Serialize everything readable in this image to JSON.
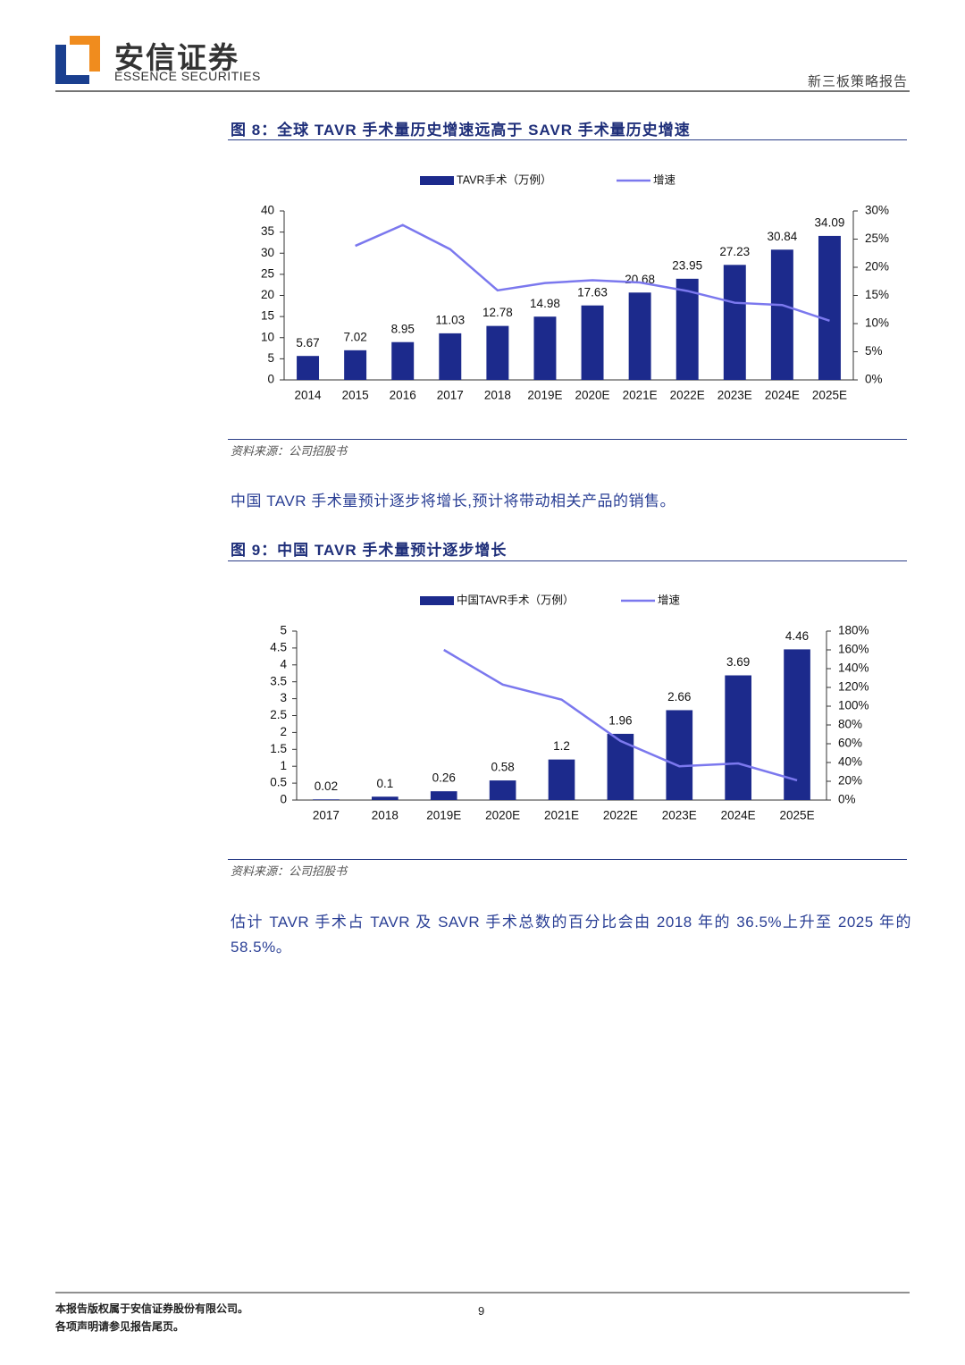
{
  "header": {
    "company": "安信证券",
    "company_en": "ESSENCE SECURITIES",
    "report_type": "新三板策略报告"
  },
  "figures": [
    {
      "caption": "图 8：全球 TAVR 手术量历史增速远高于 SAVR 手术量历史增速",
      "source": "资料来源：公司招股书"
    },
    {
      "caption": "图 9：中国 TAVR 手术量预计逐步增长",
      "source": "资料来源：公司招股书"
    }
  ],
  "paragraphs": [
    "中国 TAVR 手术量预计逐步将增长,预计将带动相关产品的销售。",
    "估计 TAVR 手术占 TAVR 及 SAVR 手术总数的百分比会由 2018 年的 36.5%上升至 2025 年的 58.5%。"
  ],
  "footer": {
    "copyright": "本报告版权属于安信证券股份有限公司。",
    "disclaimer": "各项声明请参见报告尾页。",
    "page_number": 9
  },
  "chart_data": [
    {
      "type": "bar",
      "categories": [
        "2014",
        "2015",
        "2016",
        "2017",
        "2018",
        "2019E",
        "2020E",
        "2021E",
        "2022E",
        "2023E",
        "2024E",
        "2025E"
      ],
      "series": [
        {
          "name": "TAVR手术（万例）",
          "color": "#1c2a8c",
          "values": [
            5.67,
            7.02,
            8.95,
            11.03,
            12.78,
            14.98,
            17.63,
            20.68,
            23.95,
            27.23,
            30.84,
            34.09
          ]
        },
        {
          "name": "增速",
          "color": "#7b78ee",
          "type": "line",
          "axis": "y2",
          "values": [
            null,
            23.8,
            27.5,
            23.2,
            15.9,
            17.2,
            17.7,
            17.3,
            15.8,
            13.7,
            13.3,
            10.5
          ]
        }
      ],
      "ylim": [
        0,
        40
      ],
      "yticks": [
        0,
        5,
        10,
        15,
        20,
        25,
        30,
        35,
        40
      ],
      "y2lim": [
        0,
        30
      ],
      "y2ticks": [
        {
          "value": 0,
          "label": "0%"
        },
        {
          "value": 5,
          "label": "5%"
        },
        {
          "value": 10,
          "label": "10%"
        },
        {
          "value": 15,
          "label": "15%"
        },
        {
          "value": 20,
          "label": "20%"
        },
        {
          "value": 25,
          "label": "25%"
        },
        {
          "value": 30,
          "label": "30%"
        }
      ],
      "legend": "top",
      "grid": false
    },
    {
      "type": "bar",
      "categories": [
        "2017",
        "2018",
        "2019E",
        "2020E",
        "2021E",
        "2022E",
        "2023E",
        "2024E",
        "2025E"
      ],
      "series": [
        {
          "name": "中国TAVR手术（万例）",
          "color": "#1c2a8c",
          "values": [
            0.02,
            0.1,
            0.26,
            0.58,
            1.2,
            1.96,
            2.66,
            3.69,
            4.46
          ]
        },
        {
          "name": "增速",
          "color": "#7b78ee",
          "type": "line",
          "axis": "y2",
          "values": [
            null,
            null,
            160,
            123,
            107,
            63,
            36,
            39,
            21
          ]
        }
      ],
      "ylim": [
        0,
        5
      ],
      "yticks": [
        0,
        0.5,
        1,
        1.5,
        2,
        2.5,
        3,
        3.5,
        4,
        4.5,
        5
      ],
      "y2lim": [
        0,
        180
      ],
      "y2ticks": [
        {
          "value": 0,
          "label": "0%"
        },
        {
          "value": 20,
          "label": "20%"
        },
        {
          "value": 40,
          "label": "40%"
        },
        {
          "value": 60,
          "label": "60%"
        },
        {
          "value": 80,
          "label": "80%"
        },
        {
          "value": 100,
          "label": "100%"
        },
        {
          "value": 120,
          "label": "120%"
        },
        {
          "value": 140,
          "label": "140%"
        },
        {
          "value": 160,
          "label": "160%"
        },
        {
          "value": 180,
          "label": "180%"
        }
      ],
      "legend": "top",
      "grid": false
    }
  ]
}
